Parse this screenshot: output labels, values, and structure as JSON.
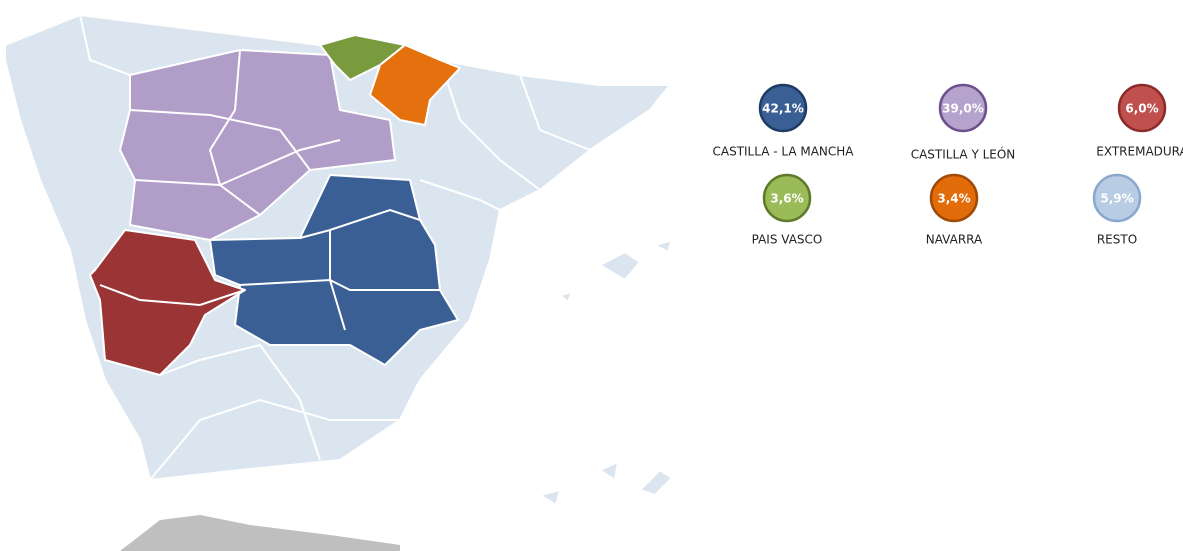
{
  "legend": [
    {
      "value": "42,1%",
      "label": "CASTILLA - LA MANCHA",
      "color": "#3a5f94",
      "border": "#1f3c66"
    },
    {
      "value": "39,0%",
      "label": "CASTILLA Y LEÓN",
      "color": "#b5a3cd",
      "border": "#6d4f8e"
    },
    {
      "value": "6,0%",
      "label": "EXTREMADURA",
      "color": "#c0504d",
      "border": "#8b2b2a"
    },
    {
      "value": "3,6%",
      "label": "PAIS VASCO",
      "color": "#9bbb59",
      "border": "#5e7a2a"
    },
    {
      "value": "3,4%",
      "label": "NAVARRA",
      "color": "#e36c0a",
      "border": "#a04a05"
    },
    {
      "value": "5,9%",
      "label": "RESTO",
      "color": "#b8cce4",
      "border": "#8aa8cf"
    }
  ]
}
